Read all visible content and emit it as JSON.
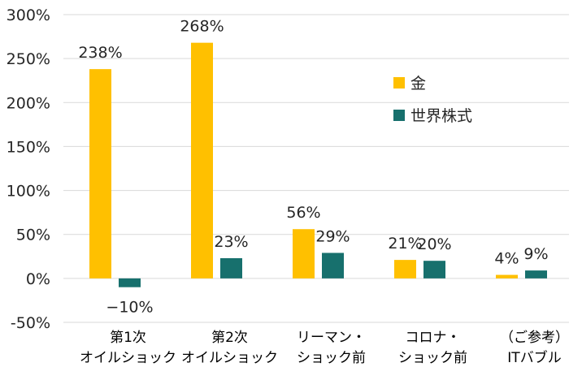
{
  "chart_data": {
    "type": "bar",
    "title": "",
    "xlabel": "",
    "ylabel": "",
    "ylim": [
      -50,
      300
    ],
    "ytick_step": 50,
    "ytick_suffix": "%",
    "grid": true,
    "legend_position": "top-right",
    "categories": [
      [
        "第1次",
        "オイルショック"
      ],
      [
        "第2次",
        "オイルショック"
      ],
      [
        "リーマン・",
        "ショック前"
      ],
      [
        "コロナ・",
        "ショック前"
      ],
      [
        "（ご参考）",
        "ITバブル"
      ]
    ],
    "series": [
      {
        "name": "金",
        "color": "#ffc000",
        "values": [
          238,
          268,
          56,
          21,
          4
        ],
        "labels": [
          "238%",
          "268%",
          "56%",
          "21%",
          "4%"
        ]
      },
      {
        "name": "世界株式",
        "color": "#17706d",
        "values": [
          -10,
          23,
          29,
          20,
          9
        ],
        "labels": [
          "−10%",
          "23%",
          "29%",
          "20%",
          "9%"
        ]
      }
    ]
  }
}
